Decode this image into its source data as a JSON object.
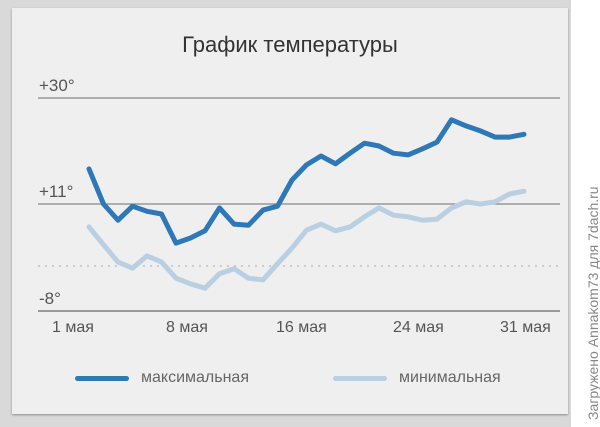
{
  "title": "График температуры",
  "y_axis": {
    "labels": [
      "+30°",
      "+11°",
      "-8°"
    ],
    "values": [
      30,
      11,
      -8
    ],
    "reference_line": 0
  },
  "x_axis": {
    "labels": [
      "1 мая",
      "8 мая",
      "16 мая",
      "24 мая",
      "31 мая"
    ]
  },
  "legend": {
    "max_label": "максимальная",
    "min_label": "минимальная"
  },
  "colors": {
    "max": "#2f78b7",
    "min": "#b9cfe2",
    "grid": "#888888",
    "card": "#efefef",
    "page": "#d9d9d9"
  },
  "watermark": "Загружено Annakom73 для 7dach.ru",
  "chart_data": {
    "type": "line",
    "title": "График температуры",
    "xlabel": "",
    "ylabel": "",
    "ylim": [
      -8,
      30
    ],
    "yticks": [
      "+30°",
      "+11°",
      "-8°"
    ],
    "xticks": [
      "1 мая",
      "8 мая",
      "16 мая",
      "24 мая",
      "31 мая"
    ],
    "grid": true,
    "legend_position": "bottom",
    "x": [
      1,
      2,
      3,
      4,
      5,
      6,
      7,
      8,
      9,
      10,
      11,
      12,
      13,
      14,
      15,
      16,
      17,
      18,
      19,
      20,
      21,
      22,
      23,
      24,
      25,
      26,
      27,
      28,
      29,
      30,
      31
    ],
    "series": [
      {
        "name": "максимальная",
        "values": [
          17.3,
          11.0,
          8.1,
          10.6,
          9.7,
          9.2,
          4.0,
          4.9,
          6.2,
          10.3,
          7.4,
          7.2,
          9.9,
          10.6,
          15.3,
          18.0,
          19.6,
          18.2,
          20.1,
          21.9,
          21.4,
          20.1,
          19.8,
          20.9,
          22.1,
          26.1,
          25.0,
          24.1,
          23.0,
          23.0,
          23.5
        ]
      },
      {
        "name": "минимальная",
        "values": [
          6.9,
          3.7,
          0.6,
          -0.5,
          1.7,
          0.6,
          -2.3,
          -3.3,
          -4.1,
          -1.5,
          -0.6,
          -2.3,
          -2.6,
          0.3,
          3.1,
          6.3,
          7.4,
          6.2,
          6.9,
          8.7,
          10.3,
          9.0,
          8.7,
          8.1,
          8.3,
          10.3,
          11.4,
          11.0,
          11.4,
          12.8,
          13.3
        ]
      }
    ]
  }
}
